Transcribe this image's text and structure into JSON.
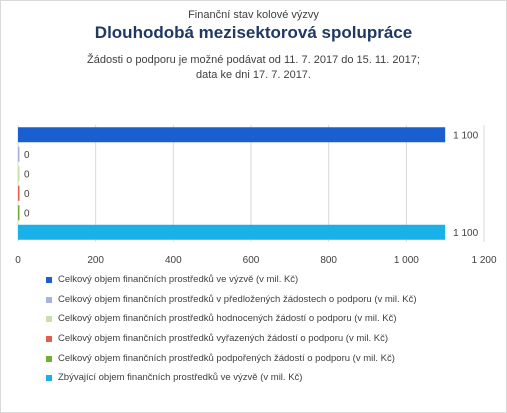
{
  "chart_data": {
    "type": "bar",
    "orientation": "horizontal",
    "supertitle": "Finanční stav kolové výzvy",
    "title": "Dlouhodobá mezisektorová spolupráce",
    "subtitle_lines": [
      "Žádosti o podporu je možné  podávat od 11. 7. 2017 do 15. 11. 2017;",
      "data ke dni 17. 7. 2017."
    ],
    "xlim": [
      0,
      1200
    ],
    "x_ticks": [
      0,
      200,
      400,
      600,
      800,
      1000,
      1200
    ],
    "x_tick_labels": [
      "0",
      "200",
      "400",
      "600",
      "800",
      "1 000",
      "1 200"
    ],
    "grid": true,
    "legend_position": "bottom",
    "series": [
      {
        "name": "Celkový objem finančních prostředků ve výzvě (v mil. Kč)",
        "value": 1100,
        "label": "1 100",
        "color": "#1a5fd0"
      },
      {
        "name": "Celkový objem finančních prostředků v předložených žádostech o podporu (v mil. Kč)",
        "value": 0,
        "label": "0",
        "color": "#a8b4dc"
      },
      {
        "name": "Celkový objem finančních prostředků hodnocených žádostí o podporu (v mil. Kč)",
        "value": 0,
        "label": "0",
        "color": "#c8e0a8"
      },
      {
        "name": "Celkový objem finančních prostředků vyřazených žádostí o podporu (v mil. Kč)",
        "value": 0,
        "label": "0",
        "color": "#e06050"
      },
      {
        "name": "Celkový objem finančních prostředků podpořených žádostí o podporu (v mil. Kč)",
        "value": 0,
        "label": "0",
        "color": "#70b030"
      },
      {
        "name": "Zbývající objem finančních prostředků ve výzvě (v mil. Kč)",
        "value": 1100,
        "label": "1 100",
        "color": "#1ab0e8"
      }
    ]
  }
}
